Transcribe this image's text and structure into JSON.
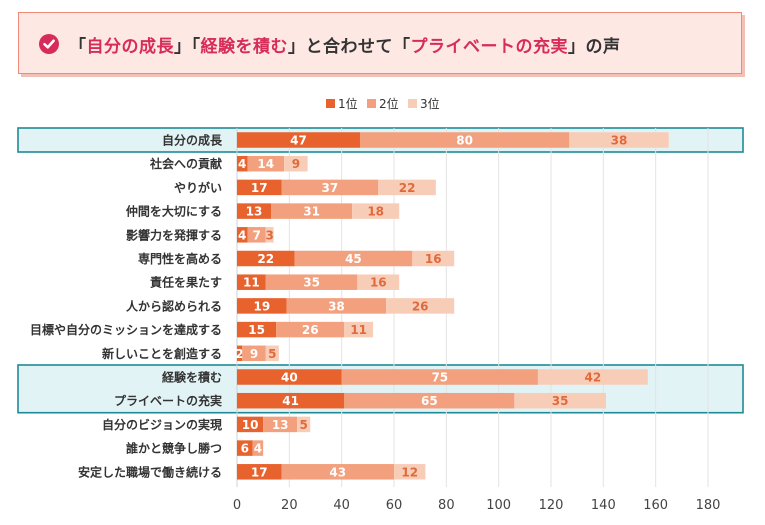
{
  "title": {
    "open1": "「",
    "highlight1": "自分の成長",
    "close1": "」",
    "open2": "「",
    "highlight2": "経験を積む",
    "close2": "」",
    "middle": "と合わせて",
    "open3": "「",
    "highlight3": "プライベートの充実",
    "close3": "」",
    "suffix": "の声"
  },
  "colors": {
    "s1": "#e8622d",
    "s2": "#f2a07d",
    "s3": "#f8cdb8",
    "highlight_fill": "#e2f3f6",
    "highlight_border": "#1f8a96",
    "accent": "#d72c5a"
  },
  "chart_data": {
    "type": "bar",
    "orientation": "horizontal",
    "stacked": true,
    "categories": [
      "自分の成長",
      "社会への貢献",
      "やりがい",
      "仲間を大切にする",
      "影響力を発揮する",
      "専門性を高める",
      "責任を果たす",
      "人から認められる",
      "目標や自分のミッションを達成する",
      "新しいことを創造する",
      "経験を積む",
      "プライベートの充実",
      "自分のビジョンの実現",
      "誰かと競争し勝つ",
      "安定した職場で働き続ける"
    ],
    "series": [
      {
        "name": "1位",
        "values": [
          47,
          4,
          17,
          13,
          4,
          22,
          11,
          19,
          15,
          2,
          40,
          41,
          10,
          6,
          17
        ]
      },
      {
        "name": "2位",
        "values": [
          80,
          14,
          37,
          31,
          7,
          45,
          35,
          38,
          26,
          9,
          75,
          65,
          13,
          4,
          43
        ]
      },
      {
        "name": "3位",
        "values": [
          38,
          9,
          22,
          18,
          3,
          16,
          16,
          26,
          11,
          5,
          42,
          35,
          5,
          0,
          12
        ]
      }
    ],
    "highlighted": [
      "自分の成長",
      "経験を積む",
      "プライベートの充実"
    ],
    "xlim": [
      0,
      180
    ],
    "xticks": [
      0,
      20,
      40,
      60,
      80,
      100,
      120,
      140,
      160,
      180
    ],
    "legend_position": "top-center"
  }
}
